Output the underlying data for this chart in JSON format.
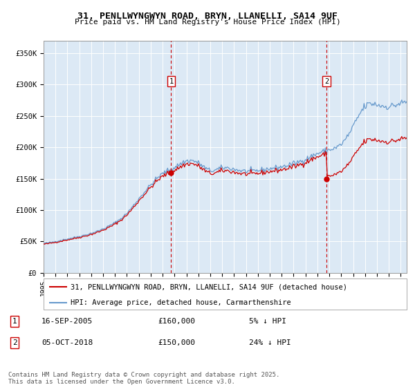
{
  "title": "31, PENLLWYNGWYN ROAD, BRYN, LLANELLI, SA14 9UF",
  "subtitle": "Price paid vs. HM Land Registry's House Price Index (HPI)",
  "ylim": [
    0,
    370000
  ],
  "xlim_start": 1995.0,
  "xlim_end": 2025.5,
  "yticks": [
    0,
    50000,
    100000,
    150000,
    200000,
    250000,
    300000,
    350000
  ],
  "ytick_labels": [
    "£0",
    "£50K",
    "£100K",
    "£150K",
    "£200K",
    "£250K",
    "£300K",
    "£350K"
  ],
  "plot_bg_color": "#dce9f5",
  "fig_bg_color": "#ffffff",
  "red_line_color": "#cc0000",
  "blue_line_color": "#6699cc",
  "vline_color": "#cc0000",
  "marker1_x": 2005.71,
  "marker2_x": 2018.76,
  "sale1_price": 160000,
  "sale2_price": 150000,
  "legend_line1": "31, PENLLWYNGWYN ROAD, BRYN, LLANELLI, SA14 9UF (detached house)",
  "legend_line2": "HPI: Average price, detached house, Carmarthenshire",
  "note1_label": "1",
  "note1_date": "16-SEP-2005",
  "note1_price": "£160,000",
  "note1_hpi": "5% ↓ HPI",
  "note2_label": "2",
  "note2_date": "05-OCT-2018",
  "note2_price": "£150,000",
  "note2_hpi": "24% ↓ HPI",
  "footer": "Contains HM Land Registry data © Crown copyright and database right 2025.\nThis data is licensed under the Open Government Licence v3.0."
}
